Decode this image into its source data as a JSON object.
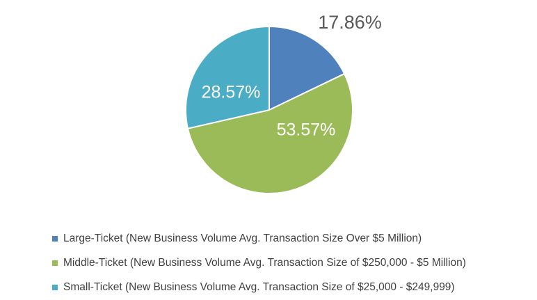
{
  "chart_data": {
    "type": "pie",
    "title": "",
    "slices": [
      {
        "name": "Large-Ticket (New Business Volume Avg. Transaction Size Over $5 Million)",
        "value": 17.86,
        "label": "17.86%",
        "color": "#4f81bd",
        "label_outside": true
      },
      {
        "name": "Middle-Ticket (New Business Volume Avg. Transaction Size of $250,000 - $5 Million)",
        "value": 53.57,
        "label": "53.57%",
        "color": "#9bbb59",
        "label_outside": false
      },
      {
        "name": "Small-Ticket (New Business Volume Avg. Transaction Size of $25,000 - $249,999)",
        "value": 28.57,
        "label": "28.57%",
        "color": "#4bacc6",
        "label_outside": false
      }
    ],
    "legend_position": "bottom",
    "start_angle": "12 o'clock, clockwise"
  }
}
